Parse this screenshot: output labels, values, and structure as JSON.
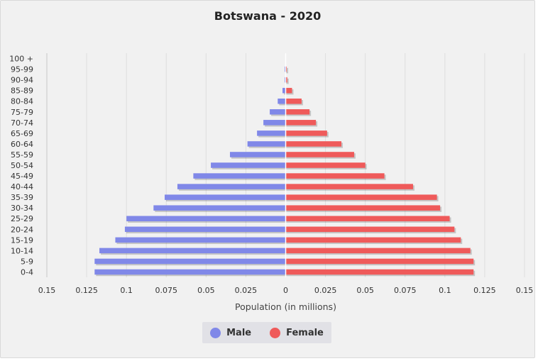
{
  "chart_data": {
    "type": "bar",
    "orientation": "horizontal-pyramid",
    "title": "Botswana - 2020",
    "xlabel": "Population (in millions)",
    "xlim": [
      -0.15,
      0.15
    ],
    "x_ticks": [
      "0.15",
      "0.125",
      "0.1",
      "0.075",
      "0.05",
      "0.025",
      "0",
      "0.025",
      "0.05",
      "0.075",
      "0.1",
      "0.125",
      "0.15"
    ],
    "categories": [
      "0-4",
      "5-9",
      "10-14",
      "15-19",
      "20-24",
      "25-29",
      "30-34",
      "35-39",
      "40-44",
      "45-49",
      "50-54",
      "55-59",
      "60-64",
      "65-69",
      "70-74",
      "75-79",
      "80-84",
      "85-89",
      "90-94",
      "95-99",
      "100 +"
    ],
    "series": [
      {
        "name": "Male",
        "color": "#8088e8",
        "values": [
          0.12,
          0.12,
          0.117,
          0.107,
          0.101,
          0.1,
          0.083,
          0.076,
          0.068,
          0.058,
          0.047,
          0.035,
          0.024,
          0.018,
          0.014,
          0.01,
          0.005,
          0.002,
          0.0005,
          0.0001,
          0.0
        ]
      },
      {
        "name": "Female",
        "color": "#ef5a5a",
        "values": [
          0.118,
          0.118,
          0.116,
          0.11,
          0.106,
          0.103,
          0.097,
          0.095,
          0.08,
          0.062,
          0.05,
          0.043,
          0.035,
          0.026,
          0.019,
          0.015,
          0.01,
          0.004,
          0.001,
          0.0002,
          0.0
        ]
      }
    ],
    "grid": true,
    "legend_position": "bottom-center"
  }
}
